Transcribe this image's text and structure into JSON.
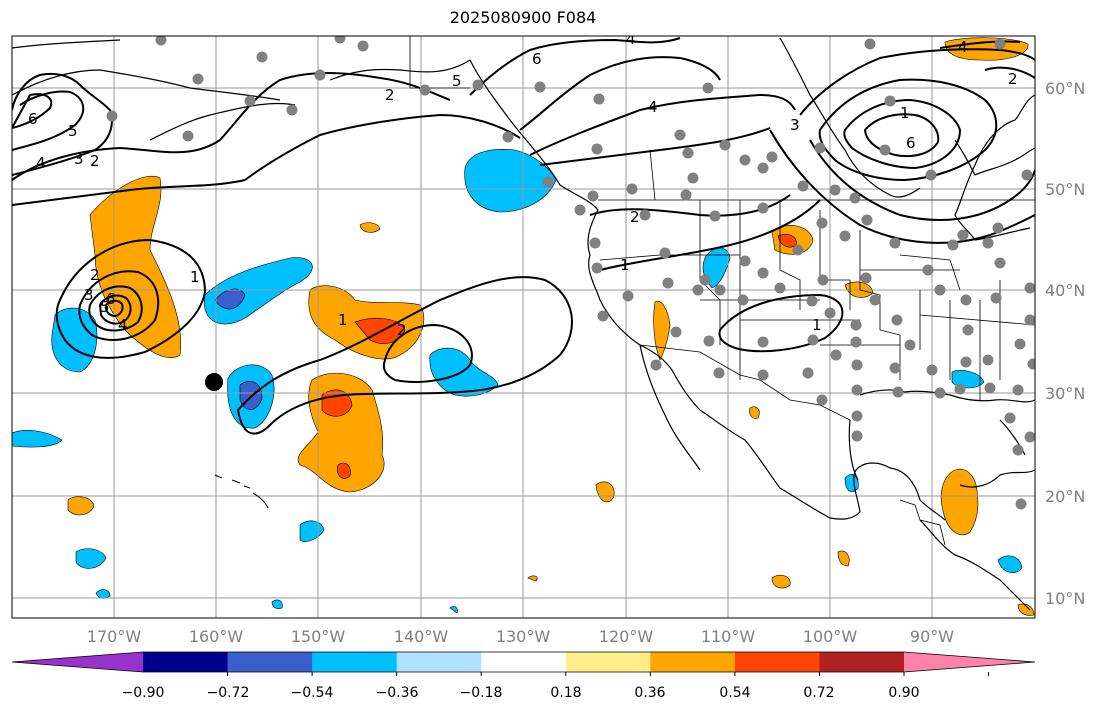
{
  "title": "2025080900 F084",
  "map": {
    "projection": "Plate Carree",
    "lon_range": [
      -180,
      -80
    ],
    "lat_range": [
      7,
      65
    ],
    "grid": true,
    "lon_ticks": [
      "170°W",
      "160°W",
      "150°W",
      "140°W",
      "130°W",
      "120°W",
      "110°W",
      "100°W",
      "90°W"
    ],
    "lat_ticks": [
      "60°N",
      "50°N",
      "40°N",
      "30°N",
      "20°N",
      "10°N"
    ],
    "contour_labels": [
      "6",
      "5",
      "4",
      "3",
      "2",
      "1",
      "1",
      "2",
      "1",
      "2",
      "3",
      "4",
      "5",
      "6",
      "4",
      "2",
      "6",
      "5",
      "4",
      "3",
      "2",
      "1",
      "1",
      "2",
      "4",
      "6"
    ],
    "marker": "black-dot",
    "station_dots": "gray",
    "features": [
      "coastlines",
      "country-borders",
      "us-state-borders"
    ]
  },
  "colorbar": {
    "ticks": [
      "−0.90",
      "−0.72",
      "−0.54",
      "−0.36",
      "−0.18",
      "0.18",
      "0.36",
      "0.54",
      "0.72",
      "0.90"
    ],
    "colors": [
      "#9932cc",
      "#00008b",
      "#3a5fcd",
      "#00bfff",
      "#b0e2ff",
      "#ffffff",
      "#ffec8b",
      "#ffa500",
      "#ff4500",
      "#b22222",
      "#ff82ab"
    ],
    "extend": "both"
  }
}
